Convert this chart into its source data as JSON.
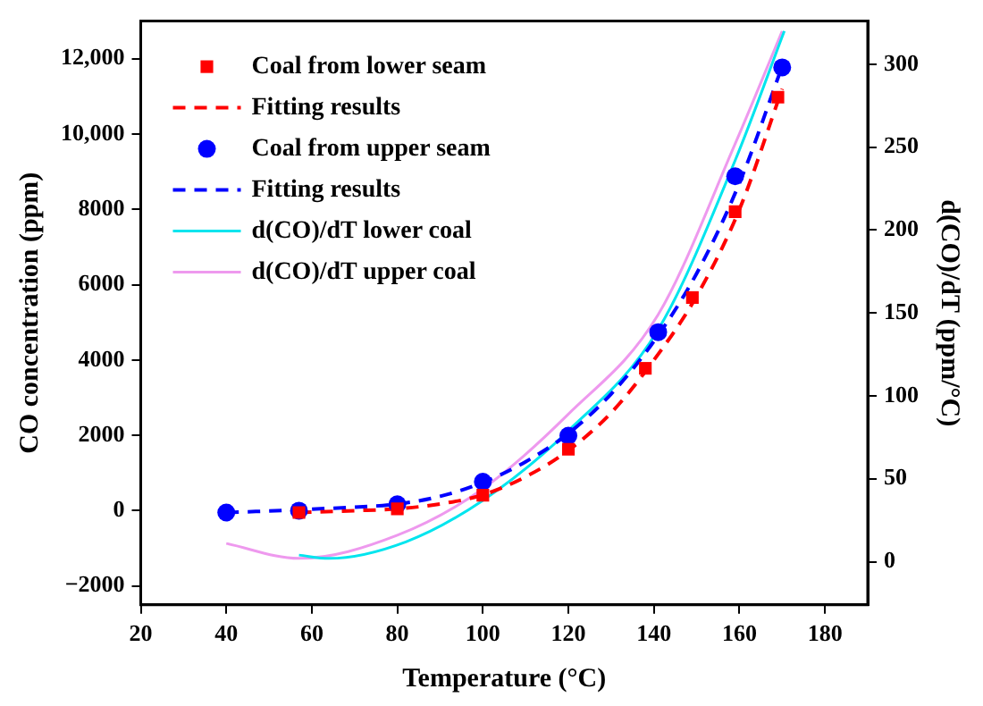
{
  "chart_data": {
    "type": "line",
    "xlabel": "Temperature (°C)",
    "ylabel": "CO concentration (ppm)",
    "y2label": "d(CO)/dT (ppm/°C)",
    "xlim": [
      20,
      190
    ],
    "xticks": [
      20,
      40,
      60,
      80,
      100,
      120,
      140,
      160,
      180
    ],
    "ylim": [
      -2500,
      13000
    ],
    "yticks": [
      {
        "value": -2000,
        "label": "−2000"
      },
      0,
      2000,
      4000,
      6000,
      8000,
      {
        "value": 10000,
        "label": "10,000"
      },
      {
        "value": 12000,
        "label": "12,000"
      }
    ],
    "y2lim": [
      -26,
      326
    ],
    "y2ticks": [
      0,
      50,
      100,
      150,
      200,
      250,
      300
    ],
    "grid": false,
    "legend": "top left",
    "series": [
      {
        "name": "Coal from lower seam",
        "type": "scatter",
        "marker": "square",
        "color": "#ff0000",
        "x": [
          57,
          80,
          100,
          120,
          138,
          149,
          159,
          169
        ],
        "values": [
          -50,
          50,
          410,
          1630,
          3780,
          5660,
          7940,
          10980
        ]
      },
      {
        "name": "Fitting results",
        "type": "line",
        "marker": "none",
        "line_style": "dashed",
        "color": "#ff0000",
        "x": [
          57,
          70,
          80,
          90,
          100,
          110,
          120,
          130,
          140,
          150,
          160,
          170
        ],
        "values": [
          -50,
          0,
          50,
          180,
          420,
          900,
          1600,
          2600,
          4000,
          5700,
          8000,
          11200
        ]
      },
      {
        "name": "Coal from upper seam",
        "type": "scatter",
        "marker": "circle",
        "color": "#0000ff",
        "x": [
          40,
          57,
          80,
          100,
          120,
          141,
          159,
          170
        ],
        "values": [
          -50,
          0,
          170,
          770,
          1990,
          4740,
          8880,
          11770
        ]
      },
      {
        "name": "Fitting results",
        "type": "line",
        "marker": "none",
        "line_style": "dashed",
        "color": "#0000ff",
        "x": [
          40,
          60,
          80,
          90,
          100,
          110,
          120,
          130,
          140,
          150,
          160,
          170
        ],
        "values": [
          -50,
          40,
          180,
          380,
          750,
          1300,
          2050,
          3100,
          4500,
          6300,
          8700,
          11800
        ]
      },
      {
        "name": "d(CO)/dT lower coal",
        "type": "line",
        "marker": "none",
        "line_style": "solid",
        "axis": "y2",
        "color": "#00e5ee",
        "x": [
          57,
          64,
          82,
          100,
          120,
          141,
          159,
          170.5
        ],
        "values": [
          4,
          2,
          12,
          37,
          79,
          140,
          242,
          320
        ]
      },
      {
        "name": "d(CO)/dT upper coal",
        "type": "line",
        "marker": "none",
        "line_style": "solid",
        "axis": "y2",
        "color": "#ee99ee",
        "x": [
          40,
          57,
          80,
          100,
          120,
          141,
          159,
          170
        ],
        "values": [
          11,
          2,
          16,
          44,
          89,
          149,
          252,
          320
        ]
      }
    ]
  }
}
